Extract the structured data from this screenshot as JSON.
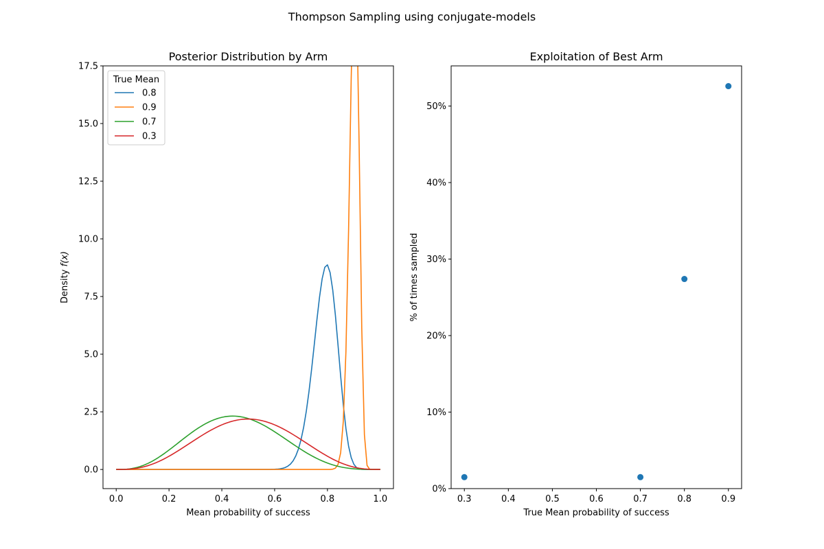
{
  "figure": {
    "suptitle": "Thompson Sampling using conjugate-models"
  },
  "chart_data": [
    {
      "type": "line",
      "title": "Posterior Distribution by Arm",
      "xlabel": "Mean probability of success",
      "ylabel_prefix": "Density ",
      "ylabel_math": "f(x)",
      "xlim": [
        -0.05,
        1.05
      ],
      "ylim": [
        -0.83,
        17.5
      ],
      "xticks": [
        0.0,
        0.2,
        0.4,
        0.6,
        0.8,
        1.0
      ],
      "xtick_labels": [
        "0.0",
        "0.2",
        "0.4",
        "0.6",
        "0.8",
        "1.0"
      ],
      "yticks": [
        0.0,
        2.5,
        5.0,
        7.5,
        10.0,
        12.5,
        15.0,
        17.5
      ],
      "ytick_labels": [
        "0.0",
        "2.5",
        "5.0",
        "7.5",
        "10.0",
        "12.5",
        "15.0",
        "17.5"
      ],
      "legend": {
        "title": "True Mean",
        "placement": "upper left"
      },
      "series": [
        {
          "name": "0.8",
          "color": "#1f77b4",
          "distribution": "beta",
          "alpha": 64,
          "beta": 17
        },
        {
          "name": "0.9",
          "color": "#ff7f0e",
          "distribution": "beta",
          "alpha": 245,
          "beta": 27
        },
        {
          "name": "0.7",
          "color": "#2ca02c",
          "distribution": "beta",
          "alpha": 4,
          "beta": 4.8
        },
        {
          "name": "0.3",
          "color": "#d62728",
          "distribution": "beta",
          "alpha": 4,
          "beta": 4
        }
      ]
    },
    {
      "type": "scatter",
      "title": "Exploitation of Best Arm",
      "xlabel": "True Mean probability of success",
      "ylabel": "% of times sampled",
      "xlim": [
        0.27,
        0.93
      ],
      "ylim": [
        0,
        0.5525
      ],
      "xticks": [
        0.3,
        0.4,
        0.5,
        0.6,
        0.7,
        0.8,
        0.9
      ],
      "xtick_labels": [
        "0.3",
        "0.4",
        "0.5",
        "0.6",
        "0.7",
        "0.8",
        "0.9"
      ],
      "yticks": [
        0,
        0.1,
        0.2,
        0.3,
        0.4,
        0.5
      ],
      "ytick_labels": [
        "0%",
        "10%",
        "20%",
        "30%",
        "40%",
        "50%"
      ],
      "color": "#1f77b4",
      "x": [
        0.3,
        0.7,
        0.8,
        0.9
      ],
      "y": [
        0.015,
        0.015,
        0.274,
        0.526
      ]
    }
  ]
}
